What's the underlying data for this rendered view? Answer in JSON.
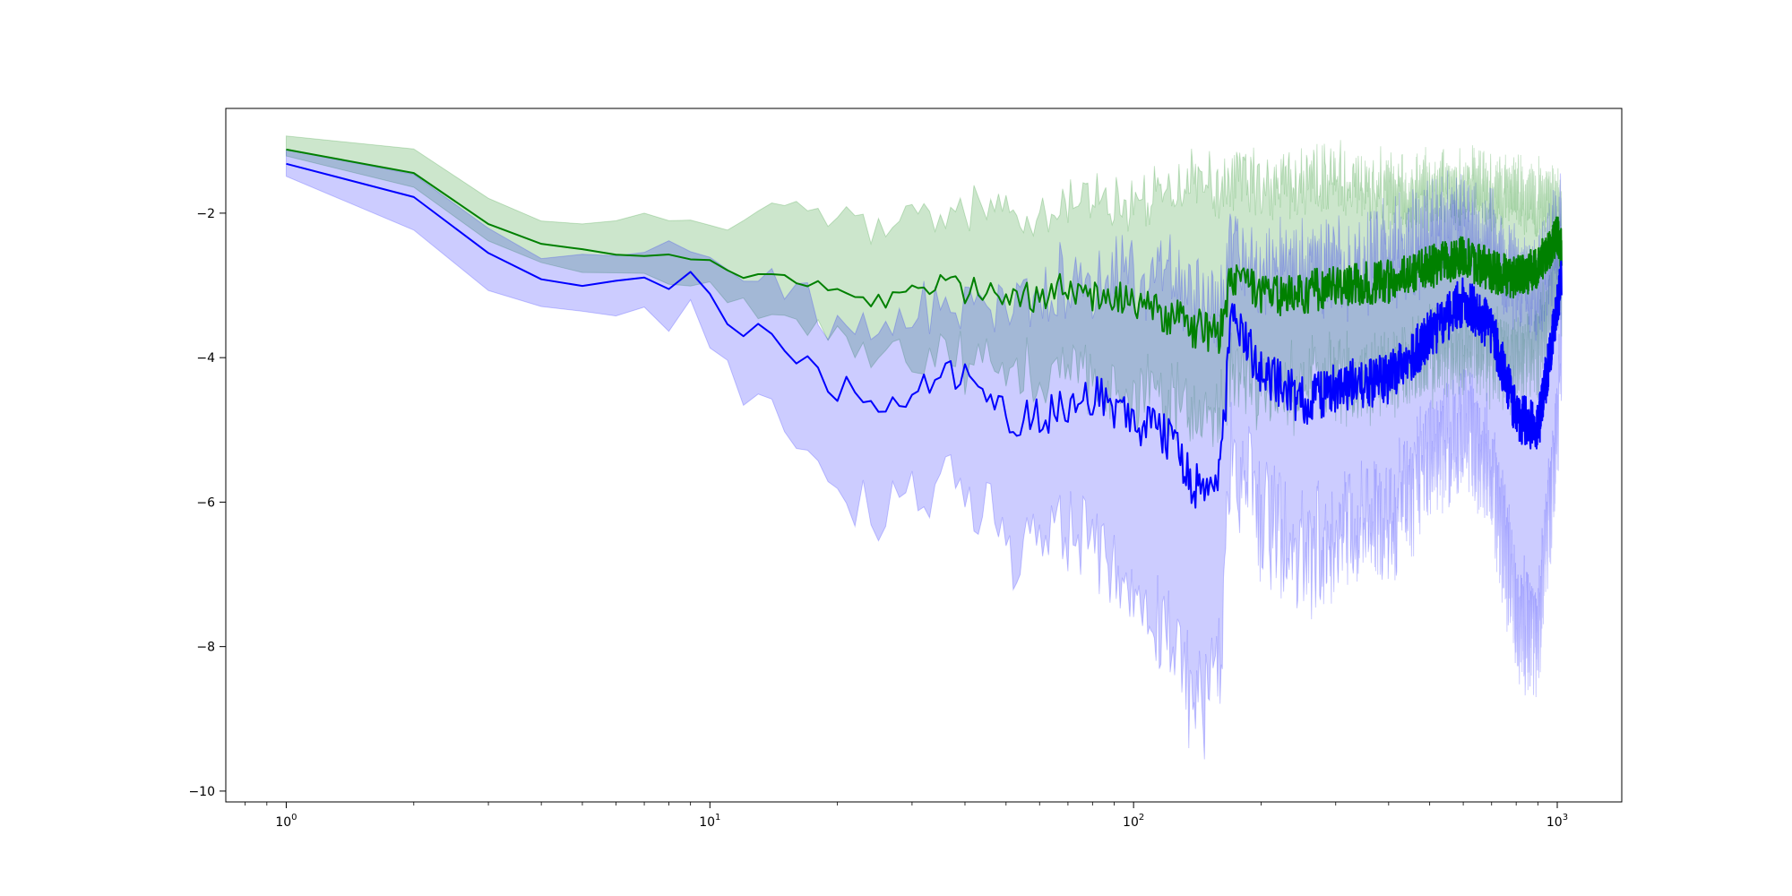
{
  "chart_data": {
    "type": "line",
    "title": "",
    "xlabel": "",
    "ylabel": "",
    "x_scale": "log",
    "xlim": [
      0.72,
      1420
    ],
    "ylim": [
      -10.15,
      -0.55
    ],
    "grid": false,
    "legend": "none",
    "x_ticks": [
      {
        "value": 1,
        "base": "10",
        "exp": "0"
      },
      {
        "value": 10,
        "base": "10",
        "exp": "1"
      },
      {
        "value": 100,
        "base": "10",
        "exp": "2"
      },
      {
        "value": 1000,
        "base": "10",
        "exp": "3"
      }
    ],
    "y_ticks": [
      {
        "value": -2,
        "label": "−2"
      },
      {
        "value": -4,
        "label": "−4"
      },
      {
        "value": -6,
        "label": "−6"
      },
      {
        "value": -8,
        "label": "−8"
      },
      {
        "value": -10,
        "label": "−10"
      }
    ],
    "x_range": [
      1,
      1024
    ],
    "series": [
      {
        "color": "#008000",
        "band_color": "#008000",
        "band_opacity": 0.2,
        "anchors_x": [
          1,
          2,
          3,
          4,
          5,
          6,
          7,
          8,
          9,
          10,
          11,
          12,
          13,
          14,
          15,
          16,
          17,
          18,
          20,
          22,
          25,
          27,
          30,
          35,
          40,
          50,
          60,
          70,
          80,
          100,
          120,
          140,
          160,
          170,
          200,
          250,
          300,
          400,
          500,
          600,
          700,
          800,
          900,
          1000,
          1024
        ],
        "anchors_mean": [
          -1.1,
          -1.45,
          -2.15,
          -2.45,
          -2.55,
          -2.57,
          -2.58,
          -2.6,
          -2.6,
          -2.58,
          -2.75,
          -2.85,
          -2.73,
          -2.8,
          -2.9,
          -2.88,
          -3.0,
          -3.0,
          -3.1,
          -3.05,
          -3.25,
          -3.2,
          -3.1,
          -3.0,
          -3.05,
          -3.1,
          -3.15,
          -3.05,
          -3.15,
          -3.2,
          -3.4,
          -3.6,
          -3.7,
          -2.9,
          -3.15,
          -3.1,
          -3.0,
          -2.95,
          -2.75,
          -2.6,
          -2.8,
          -2.9,
          -2.75,
          -2.3,
          -2.5
        ],
        "anchors_upper": [
          -0.9,
          -1.15,
          -1.8,
          -2.05,
          -2.1,
          -2.08,
          -2.1,
          -2.1,
          -2.05,
          -2.0,
          -2.05,
          -2.1,
          -2.0,
          -2.0,
          -1.98,
          -1.95,
          -2.05,
          -2.0,
          -2.1,
          -2.05,
          -2.25,
          -2.2,
          -2.1,
          -2.05,
          -2.0,
          -1.95,
          -2.0,
          -1.85,
          -1.8,
          -1.9,
          -1.7,
          -1.5,
          -1.7,
          -1.5,
          -1.7,
          -1.6,
          -1.5,
          -1.7,
          -1.7,
          -1.6,
          -1.7,
          -1.7,
          -1.75,
          -1.85,
          -1.95
        ],
        "anchors_lower": [
          -1.2,
          -1.6,
          -2.4,
          -2.75,
          -2.9,
          -2.95,
          -2.98,
          -3.0,
          -3.05,
          -3.05,
          -3.2,
          -3.35,
          -3.3,
          -3.4,
          -3.5,
          -3.55,
          -3.6,
          -3.65,
          -3.8,
          -3.85,
          -4.1,
          -4.05,
          -4.0,
          -3.95,
          -4.05,
          -4.1,
          -4.2,
          -4.2,
          -4.35,
          -4.5,
          -4.6,
          -4.8,
          -4.9,
          -4.2,
          -4.5,
          -4.4,
          -4.3,
          -4.2,
          -4.0,
          -3.8,
          -4.0,
          -4.1,
          -3.9,
          -3.0,
          -3.1
        ],
        "noise_mean": [
          0.02,
          0.02,
          0.06,
          0.12,
          0.18,
          0.25,
          0.3,
          0.3,
          0.3
        ],
        "noise_band": [
          0.02,
          0.05,
          0.1,
          0.18,
          0.25,
          0.35,
          0.4,
          0.45,
          0.45
        ]
      },
      {
        "color": "#0000ff",
        "band_color": "#0000ff",
        "band_opacity": 0.2,
        "anchors_x": [
          1,
          2,
          3,
          4,
          5,
          6,
          7,
          8,
          9,
          10,
          11,
          12,
          13,
          14,
          15,
          16,
          17,
          18,
          20,
          22,
          25,
          27,
          30,
          35,
          40,
          50,
          60,
          70,
          80,
          100,
          120,
          140,
          160,
          170,
          200,
          250,
          300,
          400,
          500,
          600,
          700,
          800,
          900,
          1000,
          1024
        ],
        "anchors_mean": [
          -1.3,
          -1.8,
          -2.6,
          -2.95,
          -3.05,
          -2.93,
          -2.98,
          -3.1,
          -2.93,
          -3.15,
          -3.55,
          -3.65,
          -3.45,
          -3.7,
          -3.75,
          -3.95,
          -3.9,
          -4.2,
          -4.5,
          -4.4,
          -4.55,
          -4.6,
          -4.5,
          -4.2,
          -4.3,
          -4.8,
          -4.85,
          -4.7,
          -4.5,
          -4.9,
          -5.1,
          -5.8,
          -5.7,
          -3.4,
          -4.2,
          -4.6,
          -4.4,
          -4.3,
          -3.7,
          -3.2,
          -3.6,
          -4.8,
          -5.0,
          -3.3,
          -2.8
        ],
        "anchors_upper": [
          -1.1,
          -1.5,
          -2.25,
          -2.55,
          -2.6,
          -2.5,
          -2.55,
          -2.6,
          -2.45,
          -2.55,
          -2.75,
          -2.85,
          -2.75,
          -2.85,
          -2.9,
          -3.0,
          -3.05,
          -3.3,
          -3.55,
          -3.45,
          -3.5,
          -3.5,
          -3.4,
          -3.2,
          -3.2,
          -3.3,
          -3.1,
          -2.9,
          -2.8,
          -2.9,
          -2.9,
          -3.2,
          -3.3,
          -2.5,
          -2.8,
          -2.8,
          -2.7,
          -2.6,
          -2.3,
          -2.1,
          -2.4,
          -2.9,
          -3.1,
          -2.3,
          -2.1
        ],
        "anchors_lower": [
          -1.5,
          -2.2,
          -3.0,
          -3.4,
          -3.5,
          -3.35,
          -3.45,
          -3.6,
          -3.4,
          -3.8,
          -4.3,
          -4.45,
          -4.2,
          -4.6,
          -4.7,
          -5.0,
          -5.1,
          -5.5,
          -6.0,
          -5.9,
          -6.1,
          -6.0,
          -5.9,
          -5.6,
          -5.8,
          -6.6,
          -6.7,
          -6.4,
          -6.5,
          -7.3,
          -7.9,
          -8.8,
          -8.5,
          -5.3,
          -6.2,
          -6.8,
          -6.5,
          -6.3,
          -5.4,
          -4.9,
          -5.6,
          -7.5,
          -7.9,
          -5.0,
          -3.8
        ],
        "noise_mean": [
          0.02,
          0.05,
          0.1,
          0.15,
          0.22,
          0.3,
          0.35,
          0.35,
          0.35
        ],
        "noise_band": [
          0.03,
          0.08,
          0.15,
          0.25,
          0.35,
          0.5,
          0.6,
          0.65,
          0.65
        ]
      }
    ]
  }
}
